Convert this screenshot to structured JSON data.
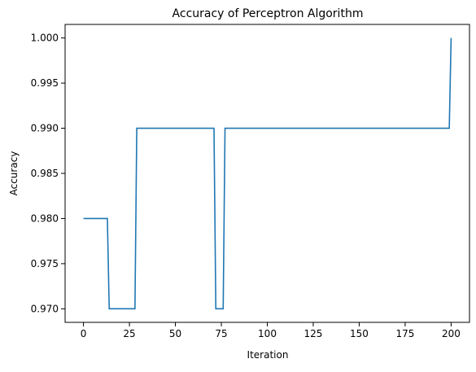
{
  "chart_data": {
    "type": "line",
    "title": "Accuracy of Perceptron Algorithm",
    "xlabel": "Iteration",
    "ylabel": "Accuracy",
    "xlim": [
      -10,
      210
    ],
    "ylim": [
      0.9685,
      1.0015
    ],
    "x_ticks": [
      0,
      25,
      50,
      75,
      100,
      125,
      150,
      175,
      200
    ],
    "x_tick_labels": [
      "0",
      "25",
      "50",
      "75",
      "100",
      "125",
      "150",
      "175",
      "200"
    ],
    "y_ticks": [
      0.97,
      0.975,
      0.98,
      0.985,
      0.99,
      0.995,
      1.0
    ],
    "y_tick_labels": [
      "0.970",
      "0.975",
      "0.980",
      "0.985",
      "0.990",
      "0.995",
      "1.000"
    ],
    "grid": false,
    "legend": false,
    "series": [
      {
        "color": "#1f77b4",
        "x": [
          0,
          13,
          14,
          28,
          29,
          71,
          72,
          76,
          77,
          199,
          200
        ],
        "y": [
          0.98,
          0.98,
          0.97,
          0.97,
          0.99,
          0.99,
          0.97,
          0.97,
          0.99,
          0.99,
          1.0
        ]
      }
    ]
  }
}
